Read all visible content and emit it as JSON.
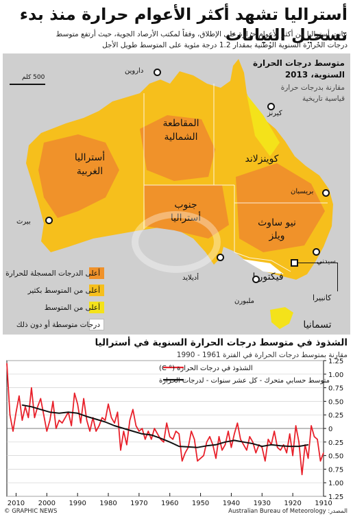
{
  "header": {
    "title": "أستراليا تشهد أكثر الأعوام حرارة منذ بدء تسجيل البيانات",
    "intro_line1": "عانت أستراليا من أكثر الأعوام حرارة على الإطلاق، وفقاً لمكتب الأرصاد الجوية، حيث أرتفع متوسط",
    "intro_line2": "درجات الحرارة السنوية الوطنية بمقدار 1.2 درجة مئوية على المتوسط طويل الأجل"
  },
  "map": {
    "title_line1": "متوسط درجات الحرارة",
    "title_line2": "السنوية، 2013",
    "subtitle_line1": "مقارنة بدرجات حرارة",
    "subtitle_line2": "قياسية تاريخية",
    "scale": "500 كلم",
    "regions": {
      "wa": "أستراليا\nالغربية",
      "nt": "المقاطعة\nالشمالية",
      "qld": "كوينزلاند",
      "sa": "جنوب\nأستراليا",
      "nsw": "نيو ساوث\nويلز",
      "vic": "فيكتوريا",
      "tas": "تسمانيا"
    },
    "cities": {
      "darwin": "داروين",
      "cairns": "كيرنز",
      "brisbane": "بريسبان",
      "sydney": "سيدني",
      "canberra": "كانبيرا",
      "melbourne": "ملبورن",
      "adelaide": "أديلايد",
      "perth": "بيرث"
    },
    "legend": [
      {
        "label": "أعلى الدرجات المسجلة للحرارة",
        "color": "#f0922a"
      },
      {
        "label": "أعلى من المتوسط بكثير",
        "color": "#f6bf1c"
      },
      {
        "label": "أعلى من المتوسط",
        "color": "#f4e21a"
      },
      {
        "label": "درجات متوسطة أو دون ذلك",
        "color": "#ffffff"
      }
    ],
    "colors": {
      "record": "#f0922a",
      "much_above": "#f6bf1c",
      "above": "#f4e21a",
      "sea": "#cfcfcf"
    }
  },
  "chart_section": {
    "title": "الشذوذ في متوسط درجات الحرارة السنوية في أستراليا",
    "subtitle": "مقارنة بمتوسط درجات الحرارة في الفترة 1961 - 1990"
  },
  "chart_data": {
    "type": "line",
    "x_direction": "right-to-left",
    "xlim": [
      1910,
      2013
    ],
    "ylim": [
      -1.25,
      1.25
    ],
    "x_ticks": [
      2010,
      2000,
      1990,
      1980,
      1970,
      1960,
      1950,
      1940,
      1930,
      1920,
      1910
    ],
    "y_ticks": [
      "1.25",
      "1.00",
      "0.75",
      "0.50",
      "0.25",
      "0",
      "0.25",
      "0.50",
      "0.75",
      "1.00",
      "1.25"
    ],
    "y_tick_values": [
      1.25,
      1.0,
      0.75,
      0.5,
      0.25,
      0,
      -0.25,
      -0.5,
      -0.75,
      -1.0,
      -1.25
    ],
    "legend": [
      {
        "label": "الشذوذ في درجات الحرارة (° C)",
        "color": "#e8202a"
      },
      {
        "label": "متوسط حسابي متحرك - كل عشر سنوات - لدرجات الحرارة",
        "color": "#111111"
      }
    ],
    "series": [
      {
        "name": "الشذوذ في درجات الحرارة (° C)",
        "color": "#e8202a",
        "x": [
          1910,
          1911,
          1912,
          1913,
          1914,
          1915,
          1916,
          1917,
          1918,
          1919,
          1920,
          1921,
          1922,
          1923,
          1924,
          1925,
          1926,
          1927,
          1928,
          1929,
          1930,
          1931,
          1932,
          1933,
          1934,
          1935,
          1936,
          1937,
          1938,
          1939,
          1940,
          1941,
          1942,
          1943,
          1944,
          1945,
          1946,
          1947,
          1948,
          1949,
          1950,
          1951,
          1952,
          1953,
          1954,
          1955,
          1956,
          1957,
          1958,
          1959,
          1960,
          1961,
          1962,
          1963,
          1964,
          1965,
          1966,
          1967,
          1968,
          1969,
          1970,
          1971,
          1972,
          1973,
          1974,
          1975,
          1976,
          1977,
          1978,
          1979,
          1980,
          1981,
          1982,
          1983,
          1984,
          1985,
          1986,
          1987,
          1988,
          1989,
          1990,
          1991,
          1992,
          1993,
          1994,
          1995,
          1996,
          1997,
          1998,
          1999,
          2000,
          2001,
          2002,
          2003,
          2004,
          2005,
          2006,
          2007,
          2008,
          2009,
          2010,
          2011,
          2012,
          2013
        ],
        "y": [
          -0.45,
          -0.6,
          -0.2,
          -0.15,
          0.05,
          -0.55,
          -0.3,
          -0.85,
          -0.25,
          0.05,
          -0.5,
          -0.1,
          -0.45,
          -0.3,
          -0.4,
          -0.35,
          -0.05,
          -0.3,
          -0.2,
          -0.6,
          -0.35,
          -0.3,
          -0.45,
          -0.25,
          -0.15,
          -0.4,
          -0.3,
          -0.2,
          0.1,
          -0.1,
          -0.35,
          -0.05,
          -0.3,
          -0.4,
          -0.15,
          -0.55,
          -0.3,
          -0.15,
          -0.25,
          -0.5,
          -0.55,
          -0.6,
          -0.2,
          -0.05,
          -0.35,
          -0.45,
          -0.6,
          -0.1,
          -0.05,
          -0.2,
          -0.15,
          0.1,
          -0.25,
          -0.2,
          -0.1,
          0.0,
          -0.2,
          -0.05,
          -0.2,
          0.0,
          -0.05,
          0.05,
          0.35,
          0.15,
          -0.3,
          -0.05,
          -0.4,
          0.3,
          0.1,
          0.2,
          0.45,
          0.15,
          0.2,
          0.05,
          -0.05,
          0.2,
          -0.05,
          0.15,
          0.55,
          0.1,
          0.45,
          0.65,
          0.05,
          0.3,
          0.2,
          0.1,
          0.15,
          0.0,
          0.5,
          0.15,
          -0.05,
          0.25,
          0.55,
          0.4,
          0.2,
          0.75,
          0.2,
          0.4,
          0.15,
          0.6,
          0.3,
          -0.05,
          0.25,
          1.2
        ]
      },
      {
        "name": "متوسط حسابي متحرك - كل عشر سنوات - لدرجات الحرارة",
        "color": "#111111",
        "x": [
          1915,
          1918,
          1921,
          1924,
          1927,
          1930,
          1933,
          1936,
          1939,
          1942,
          1945,
          1948,
          1951,
          1954,
          1957,
          1960,
          1963,
          1966,
          1969,
          1972,
          1975,
          1978,
          1981,
          1984,
          1987,
          1990,
          1993,
          1996,
          1999,
          2002,
          2005,
          2008
        ],
        "y": [
          -0.3,
          -0.33,
          -0.33,
          -0.32,
          -0.3,
          -0.33,
          -0.28,
          -0.25,
          -0.22,
          -0.25,
          -0.3,
          -0.32,
          -0.35,
          -0.34,
          -0.33,
          -0.25,
          -0.18,
          -0.12,
          -0.1,
          -0.05,
          0.0,
          0.05,
          0.12,
          0.17,
          0.22,
          0.28,
          0.3,
          0.28,
          0.3,
          0.35,
          0.4,
          0.43
        ]
      }
    ]
  },
  "footer": {
    "credit": "© GRAPHIC NEWS",
    "source": "المصدر: Australian Bureau of Meteorology"
  }
}
